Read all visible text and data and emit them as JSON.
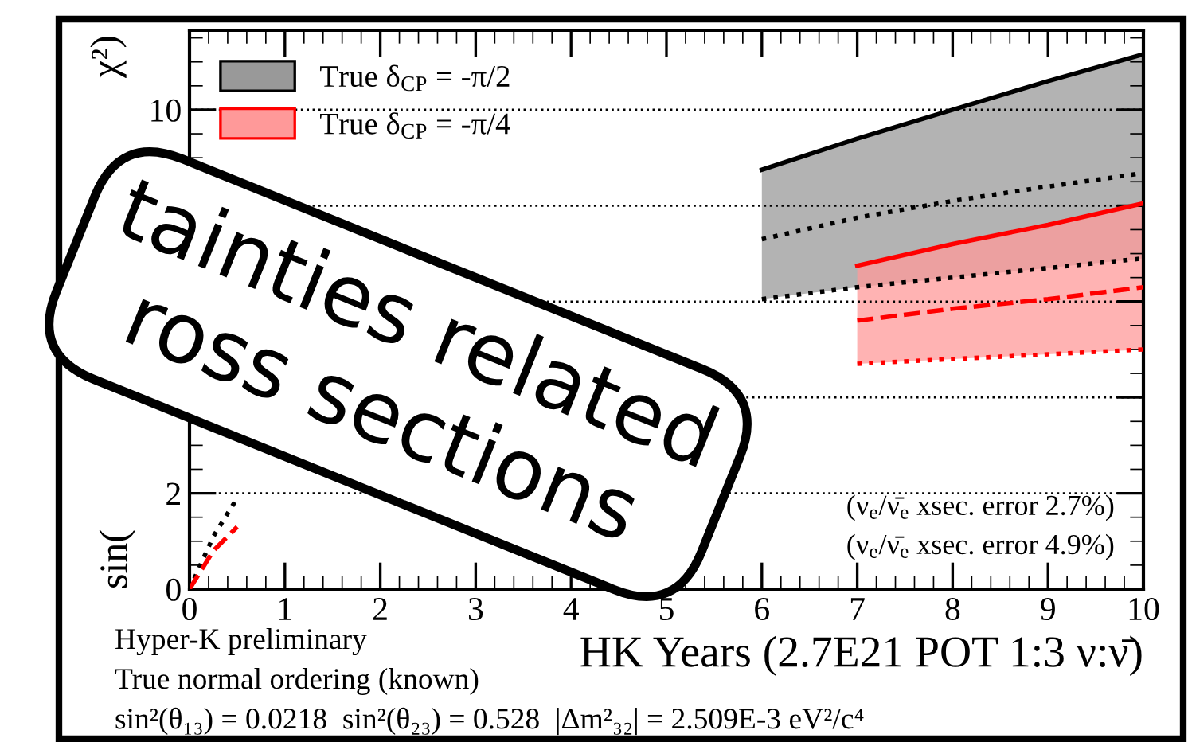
{
  "chart_data": {
    "type": "line",
    "xlabel": "HK Years (2.7E21 POT 1:3 ν:ν̄)",
    "ylabel": "sin(",
    "x": [
      0,
      0.25,
      0.5,
      3,
      6,
      7,
      8,
      9,
      10
    ],
    "series": [
      {
        "name": "True δ$_{CP}$ = -π/2",
        "color": "#000000",
        "line_style": "dotted",
        "values": [
          0,
          1.1,
          1.9,
          null,
          7.3,
          7.75,
          8.1,
          8.4,
          8.68
        ],
        "lower": [
          null,
          null,
          null,
          null,
          6.05,
          6.3,
          6.5,
          6.7,
          6.9
        ],
        "upper": [
          null,
          null,
          null,
          null,
          8.75,
          9.4,
          10.0,
          10.6,
          11.16
        ]
      },
      {
        "color": "#000000",
        "line_style": "solid",
        "values": [
          null,
          null,
          null,
          null,
          8.75,
          9.4,
          10.0,
          10.6,
          11.16
        ]
      },
      {
        "color": "#000000",
        "line_style": "dotted",
        "values": [
          null,
          null,
          null,
          null,
          6.05,
          6.3,
          6.5,
          6.7,
          6.9
        ]
      },
      {
        "name": "True δ$_{CP}$ = -π/4",
        "color": "#ff0000",
        "line_style": "dashed",
        "values": [
          0,
          0.8,
          1.3,
          null,
          null,
          5.6,
          5.85,
          6.05,
          6.3
        ],
        "lower": [
          null,
          null,
          null,
          null,
          null,
          4.7,
          4.8,
          4.9,
          5.0
        ],
        "upper": [
          null,
          null,
          null,
          null,
          null,
          6.75,
          7.2,
          7.6,
          8.05
        ]
      },
      {
        "color": "#ff0000",
        "line_style": "solid",
        "values": [
          null,
          null,
          null,
          null,
          null,
          6.75,
          7.2,
          7.6,
          8.05
        ]
      },
      {
        "color": "#ff0000",
        "line_style": "dotted",
        "values": [
          null,
          null,
          null,
          null,
          null,
          4.7,
          4.8,
          4.9,
          5.0
        ]
      }
    ],
    "xlim": [
      0,
      10
    ],
    "xticks": [
      0,
      1,
      2,
      3,
      4,
      5,
      6,
      7,
      8,
      9,
      10
    ],
    "ylim": [
      0,
      11.66
    ],
    "yticks": [
      0,
      2,
      {
        "value": 4,
        "label": null
      },
      {
        "value": 6,
        "label": null
      },
      {
        "value": 8,
        "label": null
      },
      10
    ],
    "grid": "y",
    "legend": "top left",
    "annotations": [
      "χ²)",
      "(ν$_{e}$/ν̄$_{e}$ xsec. error 2.7%)",
      "(ν$_{e}$/ν̄$_{e}$ xsec. error 4.9%)",
      "Hyper-K preliminary",
      "True normal ordering (known)",
      "sin²(θ₁₃) = 0.0218  sin²(θ₂₃) = 0.528  |Δm²₃₂| = 2.509E-3 eV²/c⁴",
      "tainties related",
      "ross sections"
    ]
  }
}
